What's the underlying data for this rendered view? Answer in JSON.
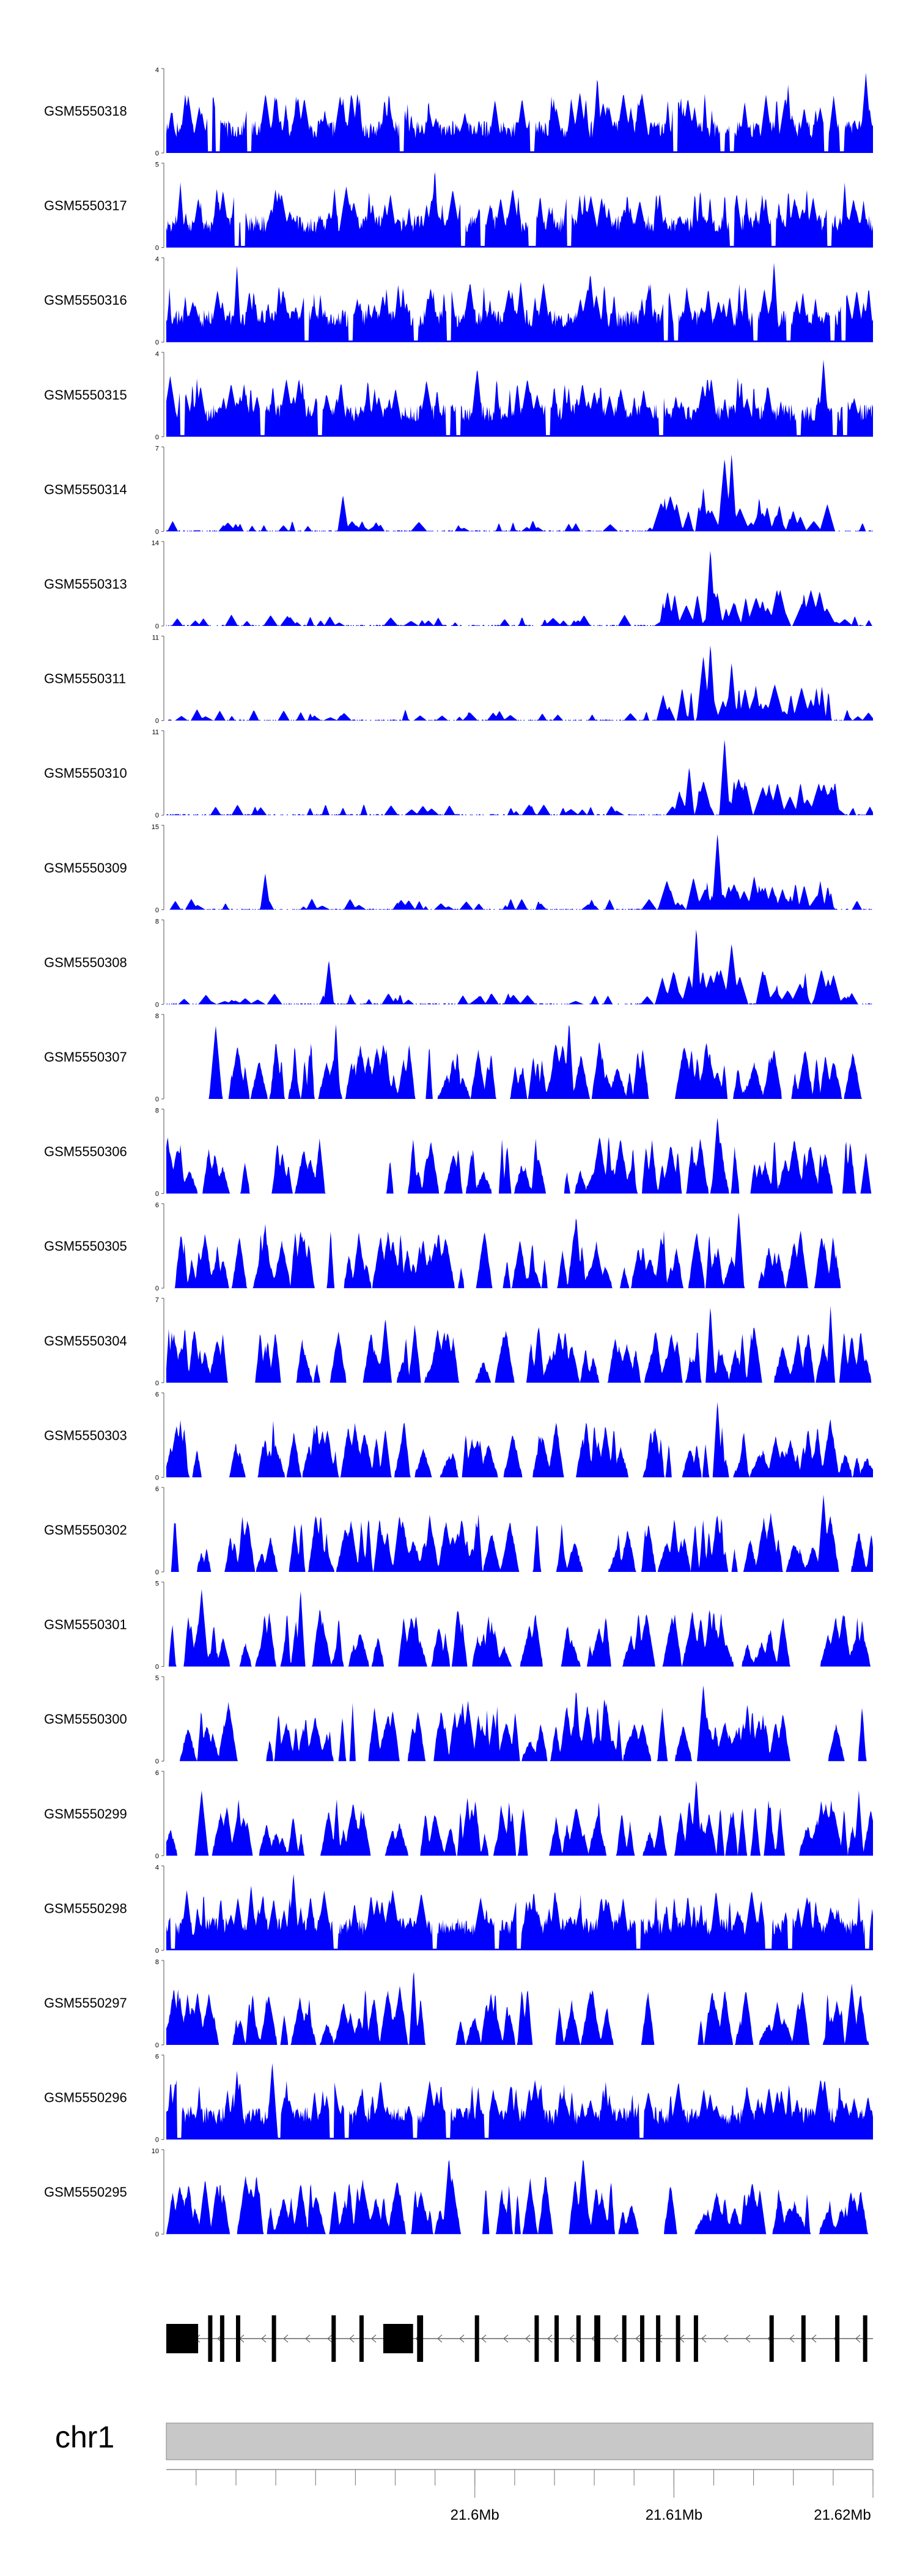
{
  "chart_data": {
    "type": "area",
    "title": "",
    "chromosome": "chr1",
    "region_start_mb": 21.5845,
    "region_end_mb": 21.62,
    "series_color": "#0000ff",
    "tracks": [
      {
        "name": "GSM5550318",
        "ymax": 4,
        "profile": "dense-uniform",
        "peaks": [
          [
            0.61,
            0.95
          ],
          [
            0.88,
            0.85
          ],
          [
            0.99,
            0.98
          ]
        ]
      },
      {
        "name": "GSM5550317",
        "ymax": 5,
        "profile": "dense-uniform",
        "peaks": [
          [
            0.02,
            0.8
          ],
          [
            0.38,
            0.99
          ],
          [
            0.96,
            0.8
          ]
        ]
      },
      {
        "name": "GSM5550316",
        "ymax": 4,
        "profile": "dense-uniform",
        "peaks": [
          [
            0.1,
            0.95
          ],
          [
            0.6,
            0.85
          ],
          [
            0.86,
            0.99
          ]
        ]
      },
      {
        "name": "GSM5550315",
        "ymax": 4,
        "profile": "dense-uniform",
        "peaks": [
          [
            0.11,
            0.65
          ],
          [
            0.44,
            0.85
          ],
          [
            0.93,
            0.95
          ]
        ]
      },
      {
        "name": "GSM5550314",
        "ymax": 7,
        "profile": "sparse-right",
        "peaks": [
          [
            0.25,
            0.45
          ],
          [
            0.76,
            0.55
          ],
          [
            0.79,
            0.9
          ],
          [
            0.8,
            0.97
          ]
        ]
      },
      {
        "name": "GSM5550313",
        "ymax": 14,
        "profile": "sparse-right",
        "peaks": [
          [
            0.77,
            0.95
          ],
          [
            0.82,
            0.35
          ]
        ]
      },
      {
        "name": "GSM5550311",
        "ymax": 11,
        "profile": "sparse-right",
        "peaks": [
          [
            0.76,
            0.8
          ],
          [
            0.77,
            0.95
          ],
          [
            0.8,
            0.72
          ],
          [
            0.92,
            0.4
          ]
        ]
      },
      {
        "name": "GSM5550310",
        "ymax": 11,
        "profile": "sparse-right",
        "peaks": [
          [
            0.74,
            0.6
          ],
          [
            0.79,
            0.95
          ]
        ]
      },
      {
        "name": "GSM5550309",
        "ymax": 15,
        "profile": "sparse-right",
        "peaks": [
          [
            0.14,
            0.45
          ],
          [
            0.78,
            0.95
          ]
        ]
      },
      {
        "name": "GSM5550308",
        "ymax": 8,
        "profile": "sparse-right",
        "peaks": [
          [
            0.23,
            0.55
          ],
          [
            0.75,
            0.95
          ],
          [
            0.8,
            0.75
          ]
        ]
      },
      {
        "name": "GSM5550307",
        "ymax": 8,
        "profile": "spiky",
        "peaks": [
          [
            0.07,
            0.9
          ],
          [
            0.24,
            0.95
          ],
          [
            0.57,
            0.97
          ]
        ]
      },
      {
        "name": "GSM5550306",
        "ymax": 8,
        "profile": "spiky",
        "peaks": [
          [
            0.02,
            0.6
          ],
          [
            0.78,
            0.95
          ],
          [
            0.99,
            0.5
          ]
        ]
      },
      {
        "name": "GSM5550305",
        "ymax": 6,
        "profile": "spiky",
        "peaks": [
          [
            0.14,
            0.8
          ],
          [
            0.58,
            0.9
          ],
          [
            0.81,
            0.95
          ]
        ]
      },
      {
        "name": "GSM5550304",
        "ymax": 7,
        "profile": "spiky",
        "peaks": [
          [
            0.08,
            0.6
          ],
          [
            0.31,
            0.8
          ],
          [
            0.77,
            0.95
          ],
          [
            0.94,
            0.95
          ]
        ]
      },
      {
        "name": "GSM5550303",
        "ymax": 6,
        "profile": "spiky",
        "peaks": [
          [
            0.02,
            0.7
          ],
          [
            0.31,
            0.6
          ],
          [
            0.78,
            0.95
          ]
        ]
      },
      {
        "name": "GSM5550302",
        "ymax": 6,
        "profile": "spiky",
        "peaks": [
          [
            0.33,
            0.7
          ],
          [
            0.78,
            0.7
          ],
          [
            0.93,
            0.95
          ]
        ]
      },
      {
        "name": "GSM5550301",
        "ymax": 5,
        "profile": "spiky",
        "peaks": [
          [
            0.05,
            0.95
          ],
          [
            0.19,
            0.95
          ],
          [
            0.77,
            0.6
          ]
        ]
      },
      {
        "name": "GSM5550300",
        "ymax": 5,
        "profile": "spiky",
        "peaks": [
          [
            0.58,
            0.9
          ],
          [
            0.62,
            0.8
          ],
          [
            0.76,
            0.95
          ]
        ]
      },
      {
        "name": "GSM5550299",
        "ymax": 6,
        "profile": "spiky",
        "peaks": [
          [
            0.05,
            0.8
          ],
          [
            0.75,
            0.95
          ],
          [
            0.98,
            0.8
          ]
        ]
      },
      {
        "name": "GSM5550298",
        "ymax": 4,
        "profile": "dense-uniform",
        "peaks": [
          [
            0.12,
            0.8
          ],
          [
            0.18,
            0.95
          ],
          [
            0.55,
            0.75
          ]
        ]
      },
      {
        "name": "GSM5550297",
        "ymax": 8,
        "profile": "spiky",
        "peaks": [
          [
            0.35,
            0.95
          ],
          [
            0.79,
            0.6
          ],
          [
            0.97,
            0.75
          ]
        ]
      },
      {
        "name": "GSM5550296",
        "ymax": 6,
        "profile": "dense-uniform",
        "peaks": [
          [
            0.1,
            0.85
          ],
          [
            0.15,
            0.95
          ],
          [
            0.21,
            0.6
          ]
        ]
      },
      {
        "name": "GSM5550295",
        "ymax": 10,
        "profile": "spiky",
        "peaks": [
          [
            0.4,
            0.95
          ],
          [
            0.59,
            0.95
          ],
          [
            0.84,
            0.55
          ]
        ]
      }
    ],
    "axis_ticks": [
      {
        "label": "21.6Mb",
        "value_mb": 21.6
      },
      {
        "label": "21.61Mb",
        "value_mb": 21.61
      },
      {
        "label": "21.62Mb",
        "value_mb": 21.62
      }
    ],
    "gene_model": {
      "strand": "-",
      "exons_mb": [
        [
          21.5845,
          21.5861
        ],
        [
          21.5866,
          21.5868
        ],
        [
          21.5872,
          21.5874
        ],
        [
          21.588,
          21.5882
        ],
        [
          21.5898,
          21.59
        ],
        [
          21.5928,
          21.593
        ],
        [
          21.5942,
          21.5944
        ],
        [
          21.5954,
          21.5969
        ],
        [
          21.5971,
          21.5974
        ],
        [
          21.6,
          21.6002
        ],
        [
          21.603,
          21.6032
        ],
        [
          21.604,
          21.6042
        ],
        [
          21.6051,
          21.6053
        ],
        [
          21.606,
          21.6063
        ],
        [
          21.6074,
          21.6076
        ],
        [
          21.6083,
          21.6085
        ],
        [
          21.6091,
          21.6093
        ],
        [
          21.6101,
          21.6103
        ],
        [
          21.611,
          21.6112
        ],
        [
          21.6148,
          21.615
        ],
        [
          21.6164,
          21.6166
        ],
        [
          21.6181,
          21.6183
        ],
        [
          21.6195,
          21.6197
        ]
      ]
    }
  }
}
